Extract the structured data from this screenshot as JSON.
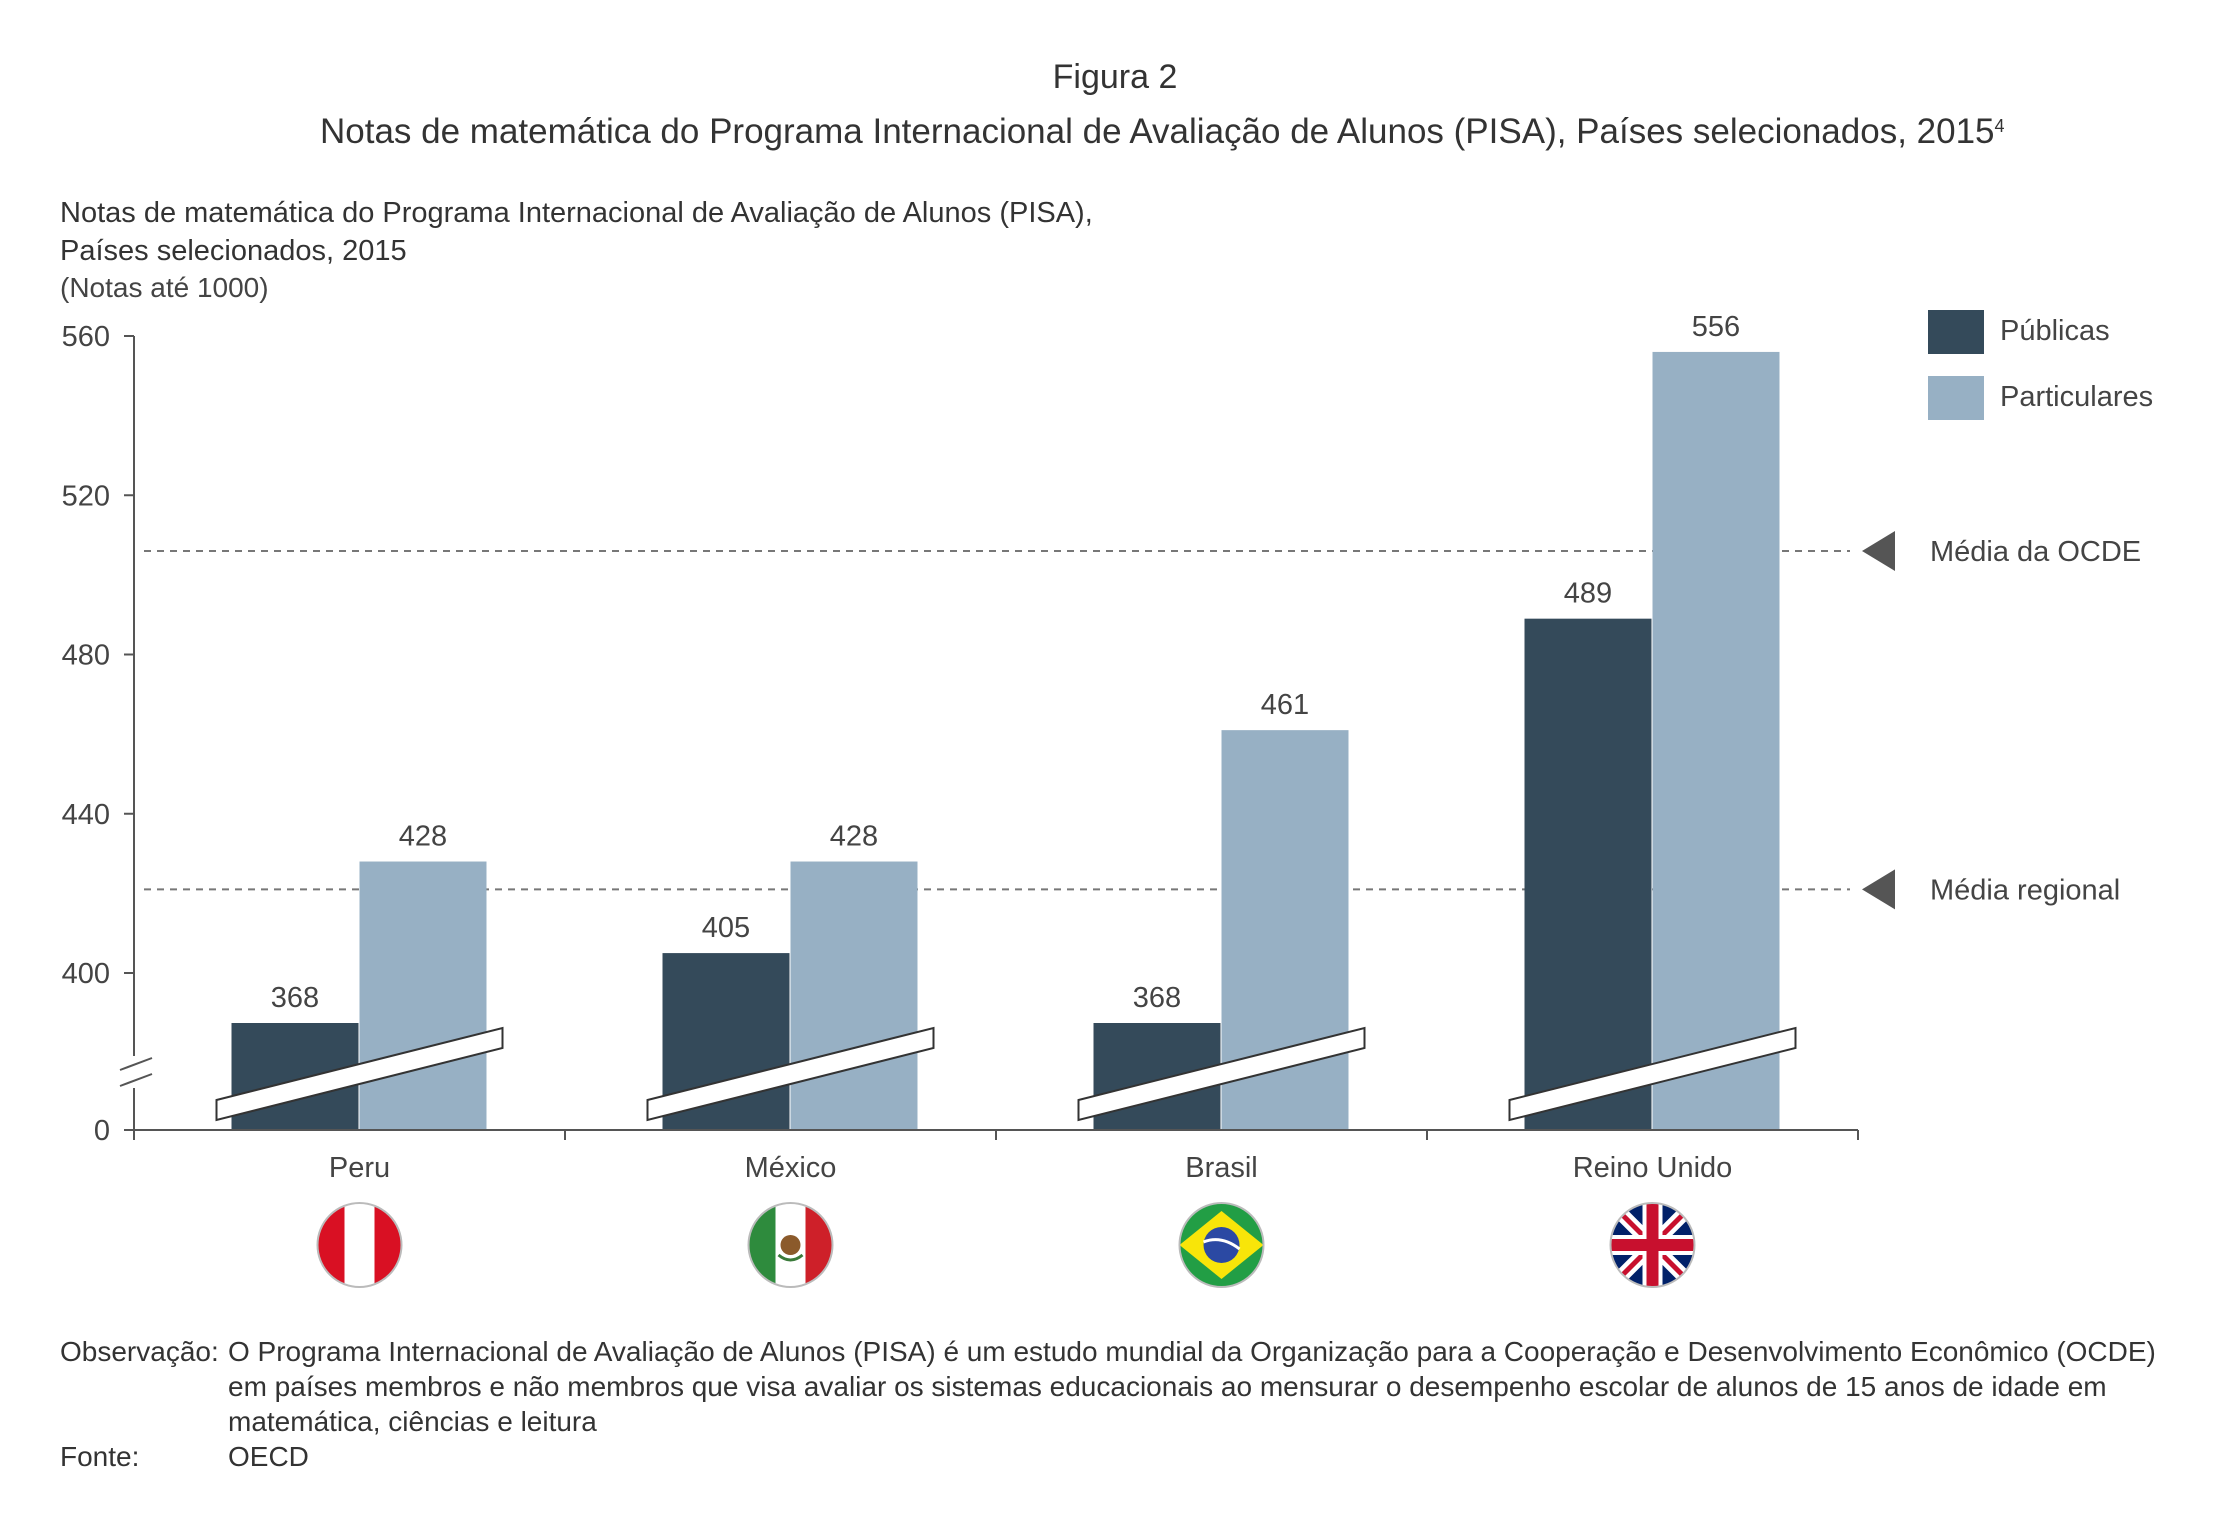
{
  "figure": {
    "number": "Figura 2",
    "title": "Notas de matemática do Programa Internacional de Avaliação de Alunos (PISA), Países selecionados, 2015",
    "title_footnote": "4"
  },
  "chart_data": {
    "type": "bar",
    "title_line1": "Notas de matemática do Programa Internacional de Avaliação de Alunos (PISA),",
    "title_line2": "Países selecionados, 2015",
    "ylabel": "(Notas até 1000)",
    "categories": [
      "Peru",
      "México",
      "Brasil",
      "Reino Unido"
    ],
    "series": [
      {
        "name": "Públicas",
        "color": "#344a5a",
        "values": [
          368,
          405,
          368,
          489
        ],
        "labels": [
          "368",
          "405",
          "368",
          "489"
        ]
      },
      {
        "name": "Particulares",
        "color": "#97b0c4",
        "values": [
          428,
          428,
          461,
          556
        ],
        "labels": [
          "428",
          "428",
          "461",
          "556"
        ]
      }
    ],
    "yticks": [
      "560",
      "520",
      "480",
      "440",
      "400",
      "0"
    ],
    "axis_break": true,
    "reference_lines": [
      {
        "label": "Média da OCDE",
        "position_value": 506
      },
      {
        "label": "Média regional",
        "position_value": 421
      }
    ],
    "legend_position": "top-right",
    "grid": false,
    "flags": [
      "peru-flag-icon",
      "mexico-flag-icon",
      "brazil-flag-icon",
      "uk-flag-icon"
    ]
  },
  "notes": {
    "observacao_label": "Observação:",
    "observacao_text": "O Programa Internacional de Avaliação de Alunos (PISA) é um estudo mundial da Organização para a Cooperação e Desenvolvimento Econômico (OCDE) em países membros e não membros que visa avaliar os sistemas educacionais ao mensurar o desempenho escolar de alunos de 15 anos de idade em matemática, ciências e leitura",
    "fonte_label": "Fonte:",
    "fonte_text": "OECD"
  }
}
